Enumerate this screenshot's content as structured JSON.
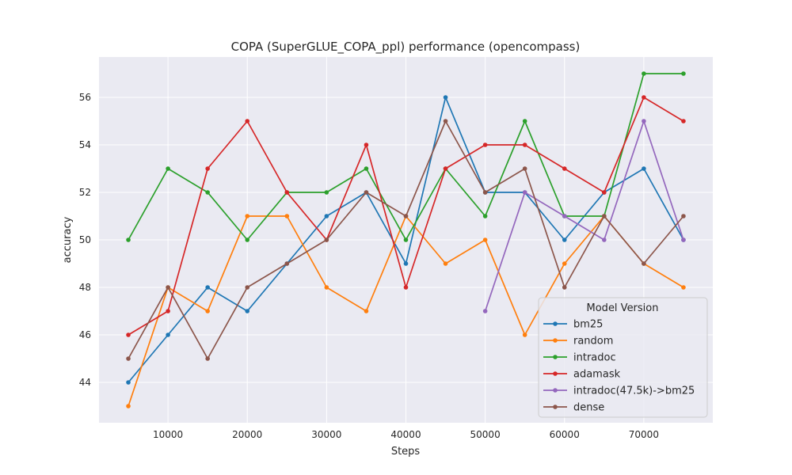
{
  "chart_data": {
    "type": "line",
    "title": "COPA (SuperGLUE_COPA_ppl) performance (opencompass)",
    "xlabel": "Steps",
    "ylabel": "accuracy",
    "xlim": [
      1300,
      78700
    ],
    "ylim": [
      42.3,
      57.7
    ],
    "xticks": [
      10000,
      20000,
      30000,
      40000,
      50000,
      60000,
      70000
    ],
    "yticks": [
      44,
      46,
      48,
      50,
      52,
      54,
      56
    ],
    "grid": true,
    "background": "#eaeaf2",
    "legend": {
      "title": "Model Version",
      "placement": "lower-right"
    },
    "x": [
      5000,
      10000,
      15000,
      20000,
      25000,
      30000,
      35000,
      40000,
      45000,
      50000,
      55000,
      60000,
      65000,
      70000,
      75000
    ],
    "series": [
      {
        "name": "bm25",
        "color": "#1f77b4",
        "values": [
          44,
          46,
          48,
          47,
          49,
          51,
          52,
          49,
          56,
          52,
          52,
          50,
          52,
          53,
          50
        ]
      },
      {
        "name": "random",
        "color": "#ff7f0e",
        "values": [
          43,
          48,
          47,
          51,
          51,
          48,
          47,
          51,
          49,
          50,
          46,
          49,
          51,
          49,
          48
        ]
      },
      {
        "name": "intradoc",
        "color": "#2ca02c",
        "values": [
          50,
          53,
          52,
          50,
          52,
          52,
          53,
          50,
          53,
          51,
          55,
          51,
          51,
          57,
          57
        ]
      },
      {
        "name": "adamask",
        "color": "#d62728",
        "values": [
          46,
          47,
          53,
          55,
          52,
          50,
          54,
          48,
          53,
          54,
          54,
          53,
          52,
          56,
          55
        ]
      },
      {
        "name": "intradoc(47.5k)->bm25",
        "color": "#9467bd",
        "values": [
          null,
          null,
          null,
          null,
          null,
          null,
          null,
          null,
          null,
          47,
          52,
          51,
          50,
          55,
          50
        ]
      },
      {
        "name": "dense",
        "color": "#8c564b",
        "values": [
          45,
          48,
          45,
          48,
          49,
          50,
          52,
          51,
          55,
          52,
          53,
          48,
          51,
          49,
          51
        ]
      }
    ]
  }
}
